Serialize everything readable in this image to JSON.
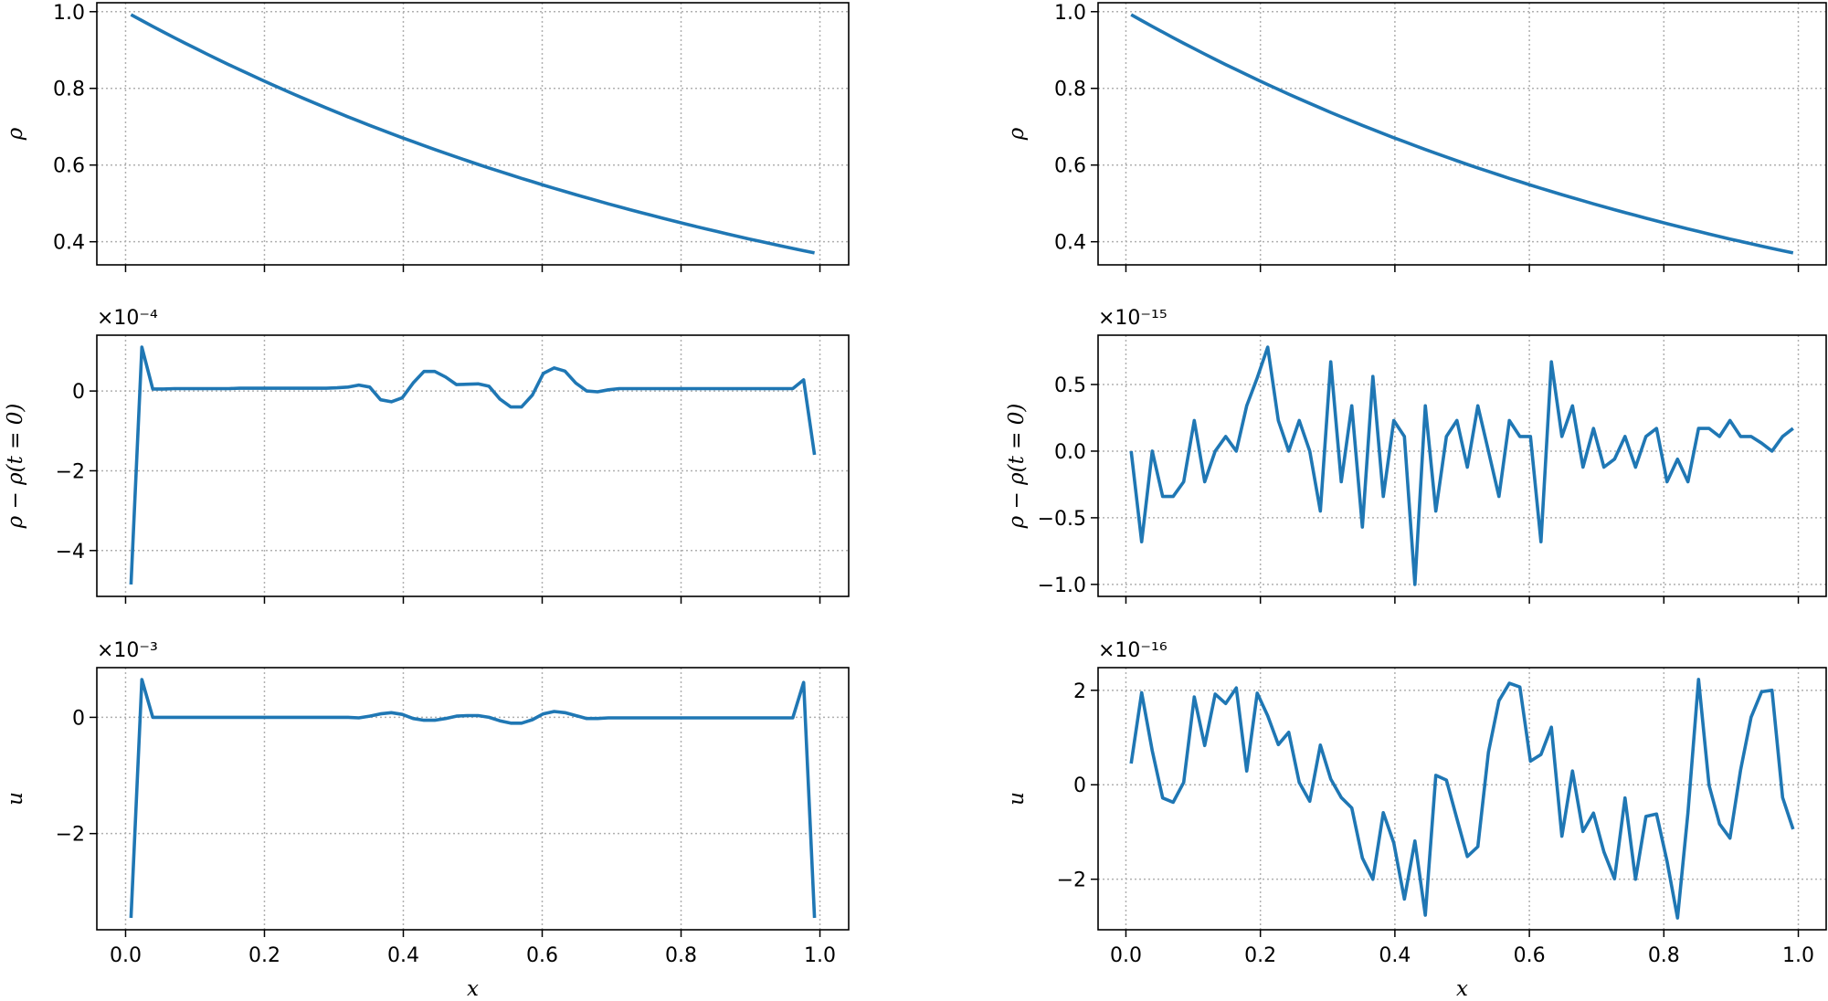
{
  "chart_data": [
    {
      "type": "line",
      "panel": "top-left",
      "ylabel": "ρ",
      "xlabel": "",
      "offset": "",
      "xlim": [
        -0.0414,
        1.0414
      ],
      "ylim": [
        0.3397,
        1.0233
      ],
      "grid": true,
      "xticks": [
        "0.0",
        "0.2",
        "0.4",
        "0.6",
        "0.8",
        "1.0"
      ],
      "show_xticklabels": false,
      "yticks": [
        0.4,
        0.6,
        0.8,
        1.0
      ],
      "ytick_labels": [
        "0.4",
        "0.6",
        "0.8",
        "1.0"
      ],
      "y": [
        0.9922,
        0.9768,
        0.9617,
        0.9468,
        0.9321,
        0.9176,
        0.9034,
        0.8894,
        0.8756,
        0.862,
        0.8487,
        0.8355,
        0.8225,
        0.8098,
        0.7972,
        0.7849,
        0.7727,
        0.7607,
        0.7489,
        0.7373,
        0.7259,
        0.7146,
        0.7035,
        0.6926,
        0.6819,
        0.6713,
        0.6609,
        0.6507,
        0.6406,
        0.6307,
        0.6209,
        0.6112,
        0.6018,
        0.5924,
        0.5833,
        0.5742,
        0.5653,
        0.5566,
        0.5479,
        0.5394,
        0.5311,
        0.5228,
        0.5147,
        0.5068,
        0.4989,
        0.4912,
        0.4836,
        0.4761,
        0.4687,
        0.4614,
        0.4543,
        0.4472,
        0.4403,
        0.4335,
        0.4268,
        0.4201,
        0.4136,
        0.4072,
        0.4009,
        0.3947,
        0.3886,
        0.3825,
        0.3766,
        0.3708
      ]
    },
    {
      "type": "line",
      "panel": "top-right",
      "ylabel": "ρ",
      "xlabel": "",
      "offset": "",
      "xlim": [
        -0.0414,
        1.0414
      ],
      "ylim": [
        0.3397,
        1.0233
      ],
      "grid": true,
      "xticks": [
        "0.0",
        "0.2",
        "0.4",
        "0.6",
        "0.8",
        "1.0"
      ],
      "show_xticklabels": false,
      "yticks": [
        0.4,
        0.6,
        0.8,
        1.0
      ],
      "ytick_labels": [
        "0.4",
        "0.6",
        "0.8",
        "1.0"
      ],
      "y": [
        0.9922,
        0.9768,
        0.9617,
        0.9468,
        0.9321,
        0.9176,
        0.9034,
        0.8894,
        0.8756,
        0.862,
        0.8487,
        0.8355,
        0.8225,
        0.8098,
        0.7972,
        0.7849,
        0.7727,
        0.7607,
        0.7489,
        0.7373,
        0.7259,
        0.7146,
        0.7035,
        0.6926,
        0.6819,
        0.6713,
        0.6609,
        0.6507,
        0.6406,
        0.6307,
        0.6209,
        0.6112,
        0.6018,
        0.5924,
        0.5833,
        0.5742,
        0.5653,
        0.5566,
        0.5479,
        0.5394,
        0.5311,
        0.5228,
        0.5147,
        0.5068,
        0.4989,
        0.4912,
        0.4836,
        0.4761,
        0.4687,
        0.4614,
        0.4543,
        0.4472,
        0.4403,
        0.4335,
        0.4268,
        0.4201,
        0.4136,
        0.4072,
        0.4009,
        0.3947,
        0.3886,
        0.3825,
        0.3766,
        0.3708
      ]
    },
    {
      "type": "line",
      "panel": "middle-left",
      "ylabel": "ρ − ρ(t = 0)",
      "xlabel": "",
      "offset": "×10⁻⁴",
      "xlim": [
        -0.0414,
        1.0414
      ],
      "ylim": [
        -5.15,
        1.4
      ],
      "grid": true,
      "xticks": [
        "0.0",
        "0.2",
        "0.4",
        "0.6",
        "0.8",
        "1.0"
      ],
      "show_xticklabels": false,
      "yticks": [
        -4,
        -2,
        0
      ],
      "ytick_labels": [
        "−4",
        "−2",
        "0"
      ],
      "y": [
        -4.85,
        1.1,
        0.05,
        0.05,
        0.06,
        0.06,
        0.06,
        0.06,
        0.06,
        0.06,
        0.07,
        0.07,
        0.07,
        0.07,
        0.07,
        0.07,
        0.07,
        0.07,
        0.07,
        0.08,
        0.1,
        0.15,
        0.1,
        -0.22,
        -0.27,
        -0.17,
        0.2,
        0.49,
        0.49,
        0.35,
        0.16,
        0.17,
        0.18,
        0.12,
        -0.2,
        -0.4,
        -0.4,
        -0.1,
        0.44,
        0.58,
        0.5,
        0.2,
        0.0,
        -0.02,
        0.03,
        0.06,
        0.06,
        0.06,
        0.06,
        0.06,
        0.06,
        0.06,
        0.06,
        0.06,
        0.06,
        0.06,
        0.06,
        0.06,
        0.06,
        0.06,
        0.06,
        0.06,
        0.28,
        -1.6
      ]
    },
    {
      "type": "line",
      "panel": "middle-right",
      "ylabel": "ρ − ρ(t = 0)",
      "xlabel": "",
      "offset": "×10⁻¹⁵",
      "xlim": [
        -0.0414,
        1.0414
      ],
      "ylim": [
        -1.09,
        0.87
      ],
      "grid": true,
      "xticks": [
        "0.0",
        "0.2",
        "0.4",
        "0.6",
        "0.8",
        "1.0"
      ],
      "show_xticklabels": false,
      "yticks": [
        -1.0,
        -0.5,
        0.0,
        0.5
      ],
      "ytick_labels": [
        "−1.0",
        "−0.5",
        "0.0",
        "0.5"
      ],
      "y": [
        0.0,
        -0.68,
        0.0,
        -0.34,
        -0.34,
        -0.23,
        0.23,
        -0.23,
        0.0,
        0.11,
        0.0,
        0.34,
        0.55,
        0.78,
        0.23,
        0.0,
        0.23,
        0.0,
        -0.45,
        0.67,
        -0.23,
        0.34,
        -0.57,
        0.56,
        -0.34,
        0.23,
        0.11,
        -1.0,
        0.34,
        -0.45,
        0.11,
        0.23,
        -0.12,
        0.34,
        0.0,
        -0.34,
        0.23,
        0.11,
        0.11,
        -0.68,
        0.67,
        0.11,
        0.34,
        -0.12,
        0.17,
        -0.12,
        -0.06,
        0.11,
        -0.12,
        0.11,
        0.17,
        -0.23,
        -0.06,
        -0.23,
        0.17,
        0.17,
        0.11,
        0.23,
        0.11,
        0.11,
        0.06,
        0.0,
        0.11,
        0.17
      ]
    },
    {
      "type": "line",
      "panel": "bottom-left",
      "ylabel": "u",
      "xlabel": "x",
      "offset": "×10⁻³",
      "xlim": [
        -0.0414,
        1.0414
      ],
      "ylim": [
        -3.655,
        0.855
      ],
      "grid": true,
      "xticks": [
        "0.0",
        "0.2",
        "0.4",
        "0.6",
        "0.8",
        "1.0"
      ],
      "show_xticklabels": true,
      "yticks": [
        -2,
        0
      ],
      "ytick_labels": [
        "−2",
        "0"
      ],
      "y": [
        -3.45,
        0.65,
        0.0,
        0.0,
        0.0,
        0.0,
        0.0,
        0.0,
        0.0,
        0.0,
        0.0,
        0.0,
        0.0,
        0.0,
        0.0,
        0.0,
        0.0,
        0.0,
        0.0,
        0.0,
        0.0,
        -0.01,
        0.02,
        0.06,
        0.08,
        0.05,
        -0.02,
        -0.05,
        -0.05,
        -0.02,
        0.02,
        0.03,
        0.03,
        0.0,
        -0.06,
        -0.1,
        -0.1,
        -0.04,
        0.06,
        0.1,
        0.08,
        0.03,
        -0.02,
        -0.02,
        -0.01,
        -0.01,
        -0.01,
        -0.01,
        -0.01,
        -0.01,
        -0.01,
        -0.01,
        -0.01,
        -0.01,
        -0.01,
        -0.01,
        -0.01,
        -0.01,
        -0.01,
        -0.01,
        -0.01,
        -0.01,
        0.6,
        -3.45
      ]
    },
    {
      "type": "line",
      "panel": "bottom-right",
      "ylabel": "u",
      "xlabel": "x",
      "offset": "×10⁻¹⁶",
      "xlim": [
        -0.0414,
        1.0414
      ],
      "ylim": [
        -3.07,
        2.48
      ],
      "grid": true,
      "xticks": [
        "0.0",
        "0.2",
        "0.4",
        "0.6",
        "0.8",
        "1.0"
      ],
      "show_xticklabels": true,
      "yticks": [
        -2,
        0,
        2
      ],
      "ytick_labels": [
        "−2",
        "0",
        "2"
      ],
      "y": [
        0.45,
        1.95,
        0.72,
        -0.28,
        -0.37,
        0.05,
        1.86,
        0.83,
        1.92,
        1.72,
        2.05,
        0.29,
        1.94,
        1.46,
        0.85,
        1.11,
        0.05,
        -0.35,
        0.84,
        0.12,
        -0.27,
        -0.49,
        -1.55,
        -2.0,
        -0.59,
        -1.23,
        -2.42,
        -1.19,
        -2.76,
        0.2,
        0.1,
        -0.72,
        -1.52,
        -1.31,
        0.69,
        1.78,
        2.15,
        2.07,
        0.5,
        0.64,
        1.22,
        -1.09,
        0.29,
        -0.99,
        -0.6,
        -1.42,
        -1.99,
        -0.28,
        -2.0,
        -0.67,
        -0.62,
        -1.62,
        -2.82,
        -0.59,
        2.23,
        -0.01,
        -0.83,
        -1.13,
        0.31,
        1.43,
        1.97,
        2.0,
        -0.27,
        -0.94
      ]
    }
  ],
  "x": [
    0.0078,
    0.0234,
    0.0391,
    0.0547,
    0.0703,
    0.0859,
    0.1016,
    0.1172,
    0.1328,
    0.1484,
    0.1641,
    0.1797,
    0.1953,
    0.2109,
    0.2266,
    0.2422,
    0.2578,
    0.2734,
    0.2891,
    0.3047,
    0.3203,
    0.3359,
    0.3516,
    0.3672,
    0.3828,
    0.3984,
    0.4141,
    0.4297,
    0.4453,
    0.4609,
    0.4766,
    0.4922,
    0.5078,
    0.5234,
    0.5391,
    0.5547,
    0.5703,
    0.5859,
    0.6016,
    0.6172,
    0.6328,
    0.6484,
    0.6641,
    0.6797,
    0.6953,
    0.7109,
    0.7266,
    0.7422,
    0.7578,
    0.7734,
    0.7891,
    0.8047,
    0.8203,
    0.8359,
    0.8516,
    0.8672,
    0.8828,
    0.8984,
    0.9141,
    0.9297,
    0.9453,
    0.9609,
    0.9766,
    0.9922
  ],
  "colors": {
    "line": "#1f77b4",
    "grid": "#b0b0b0"
  }
}
